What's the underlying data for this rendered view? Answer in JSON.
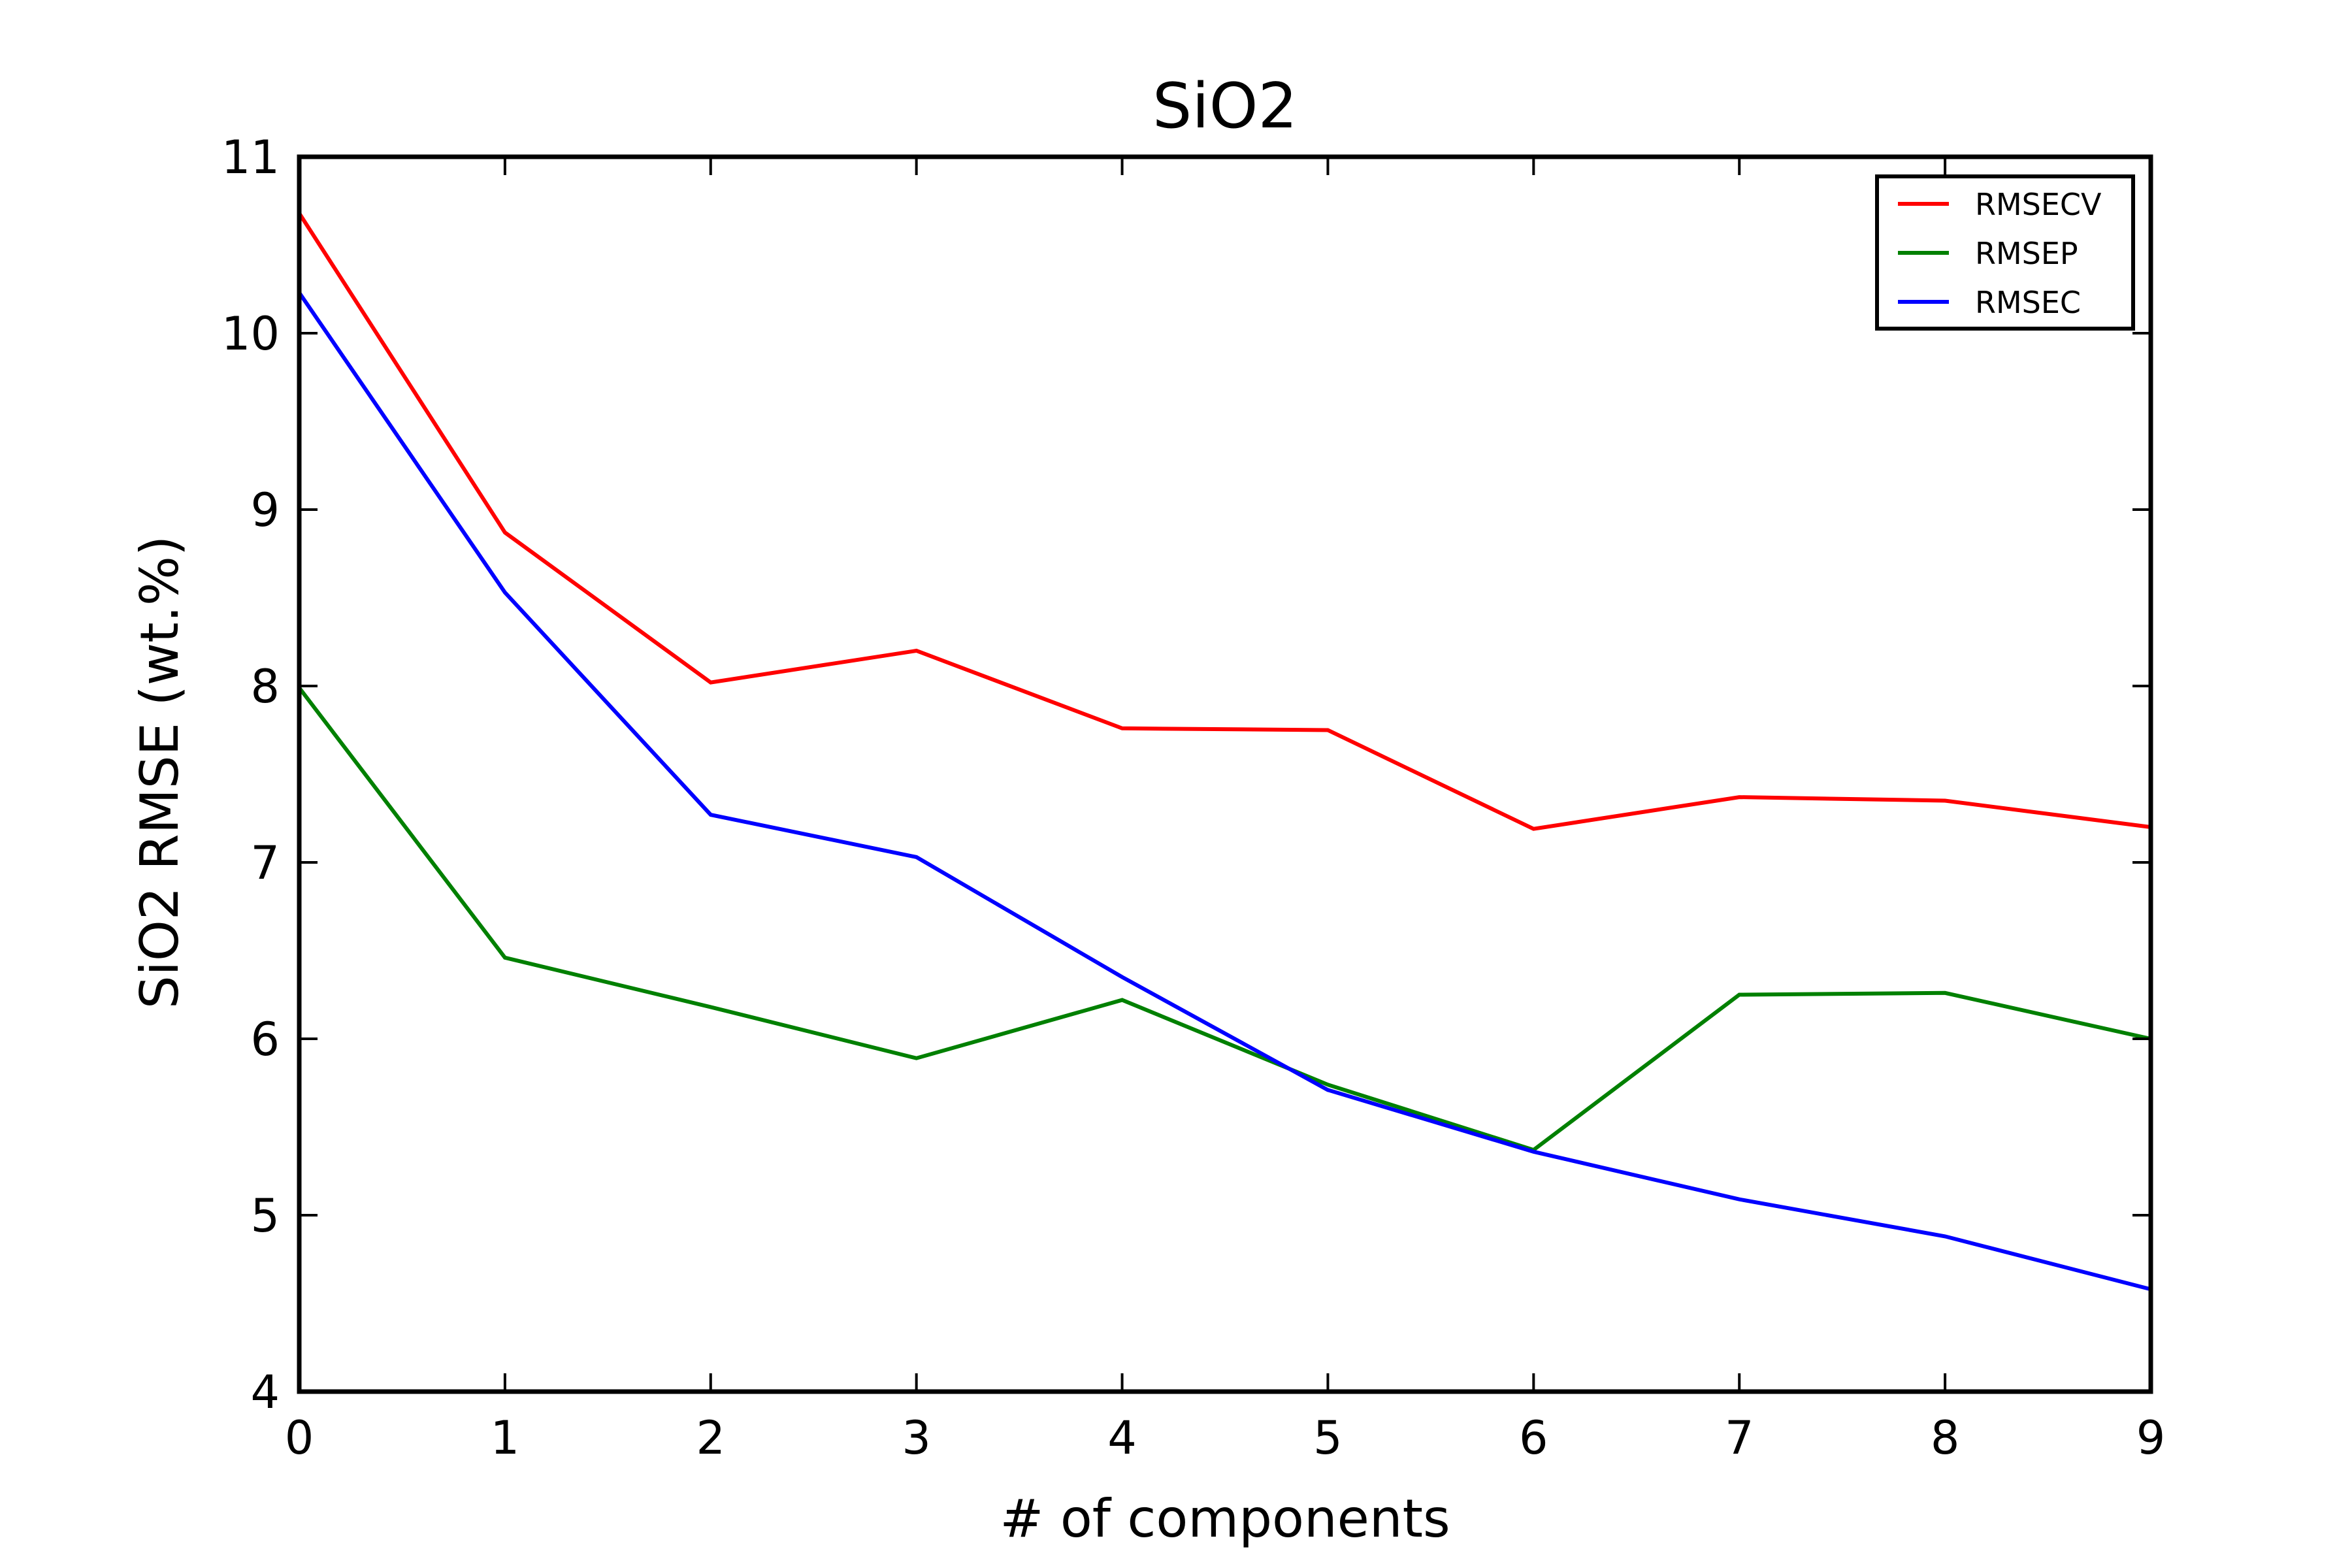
{
  "chart_data": {
    "type": "line",
    "title": "SiO2",
    "xlabel": "# of components",
    "ylabel": "SiO2 RMSE (wt.%)",
    "x": [
      0,
      1,
      2,
      3,
      4,
      5,
      6,
      7,
      8,
      9
    ],
    "xlim": [
      0,
      9
    ],
    "ylim": [
      4,
      11
    ],
    "x_ticks": [
      "0",
      "1",
      "2",
      "3",
      "4",
      "5",
      "6",
      "7",
      "8",
      "9"
    ],
    "y_ticks": [
      "4",
      "5",
      "6",
      "7",
      "8",
      "9",
      "10",
      "11"
    ],
    "grid": false,
    "legend_position": "top-right",
    "series": [
      {
        "name": "RMSECV",
        "color": "#ff0000",
        "values": [
          10.68,
          8.87,
          8.02,
          8.2,
          7.76,
          7.75,
          7.19,
          7.37,
          7.35,
          7.2
        ]
      },
      {
        "name": "RMSEP",
        "color": "#008000",
        "values": [
          7.99,
          6.46,
          6.18,
          5.89,
          6.22,
          5.74,
          5.37,
          6.25,
          6.26,
          6.0
        ]
      },
      {
        "name": "RMSEC",
        "color": "#0000ff",
        "values": [
          10.23,
          8.53,
          7.27,
          7.03,
          6.35,
          5.71,
          5.36,
          5.09,
          4.88,
          4.58
        ]
      }
    ]
  }
}
